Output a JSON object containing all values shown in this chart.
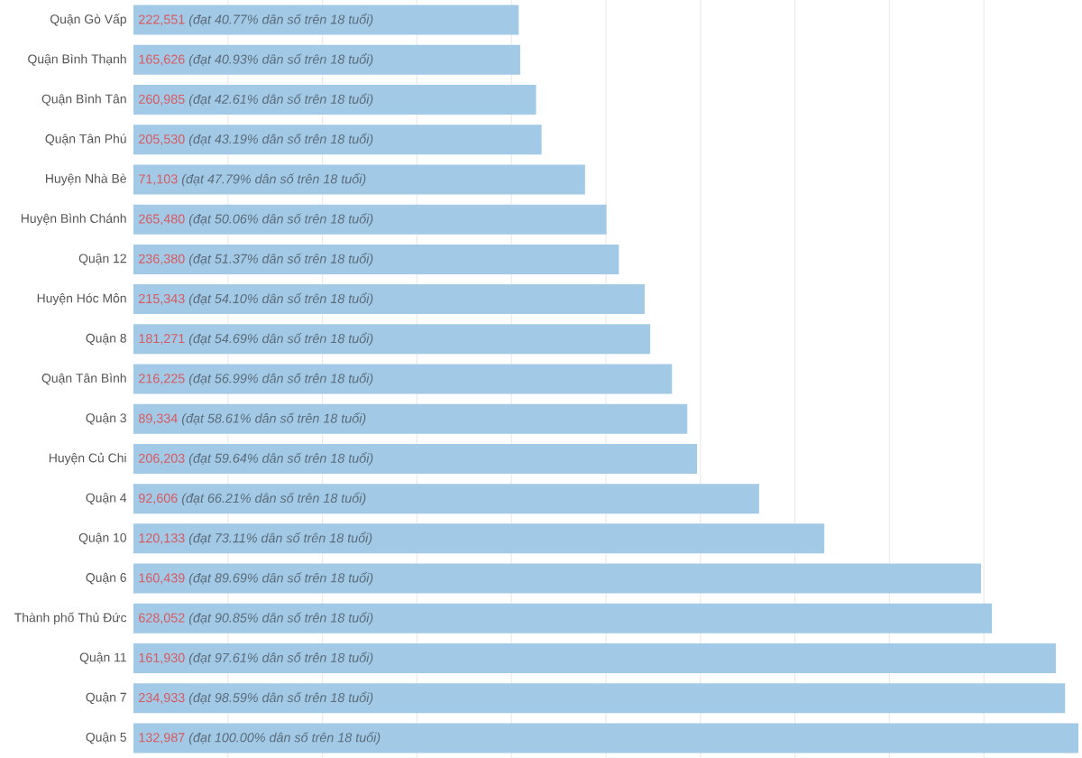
{
  "chart_data": {
    "type": "bar",
    "orientation": "horizontal",
    "categories": [
      "Quận Gò Vấp",
      "Quận Bình Thạnh",
      "Quận Bình Tân",
      "Quận Tân Phú",
      "Huyện Nhà Bè",
      "Huyện Bình Chánh",
      "Quận 12",
      "Huyện Hóc Môn",
      "Quận 8",
      "Quận Tân Bình",
      "Quận 3",
      "Huyện Củ Chi",
      "Quận 4",
      "Quận 10",
      "Quận 6",
      "Thành phố Thủ Đức",
      "Quận 11",
      "Quận 7",
      "Quận 5"
    ],
    "values": [
      40.77,
      40.93,
      42.61,
      43.19,
      47.79,
      50.06,
      51.37,
      54.1,
      54.69,
      56.99,
      58.61,
      59.64,
      66.21,
      73.11,
      89.69,
      90.85,
      97.61,
      98.59,
      100.0
    ],
    "value_labels": [
      "222,551 *(đạt 40.77% dân số trên 18 tuổi)*",
      "165,626 *(đạt 40.93% dân số trên 18 tuổi)*",
      "260,985 *(đạt 42.61% dân số trên 18 tuổi)*",
      "205,530 *(đạt 43.19% dân số trên 18 tuổi)*",
      "71,103 *(đạt 47.79% dân số trên 18 tuổi)*",
      "265,480 *(đạt 50.06% dân số trên 18 tuổi)*",
      "236,380 *(đạt 51.37% dân số trên 18 tuổi)*",
      "215,343 *(đạt 54.10% dân số trên 18 tuổi)*",
      "181,271 *(đạt 54.69% dân số trên 18 tuổi)*",
      "216,225 *(đạt 56.99% dân số trên 18 tuổi)*",
      "89,334 *(đạt 58.61% dân số trên 18 tuổi)*",
      "206,203 *(đạt 59.64% dân số trên 18 tuổi)*",
      "92,606 *(đạt 66.21% dân số trên 18 tuổi)*",
      "120,133 *(đạt 73.11% dân số trên 18 tuổi)*",
      "160,439 *(đạt 89.69% dân số trên 18 tuổi)*",
      "628,052 *(đạt 90.85% dân số trên 18 tuổi)*",
      "161,930 *(đạt 97.61% dân số trên 18 tuổi)*",
      "234,933 *(đạt 98.59% dân số trên 18 tuổi)*",
      "132,987 *(đạt 100.00% dân số trên 18 tuổi)*"
    ],
    "color": "#a2cae6",
    "xlim": [
      0,
      100
    ],
    "xticks": [
      {
        "value": 10,
        "label": null
      },
      {
        "value": 20,
        "label": null
      },
      {
        "value": 30,
        "label": null
      },
      {
        "value": 40,
        "label": null
      },
      {
        "value": 50,
        "label": null
      },
      {
        "value": 60,
        "label": null
      },
      {
        "value": 70,
        "label": null
      },
      {
        "value": 80,
        "label": null
      },
      {
        "value": 90,
        "label": null
      }
    ],
    "grid": "x"
  }
}
